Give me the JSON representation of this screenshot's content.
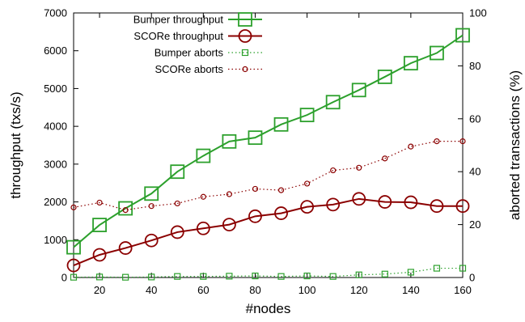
{
  "chart_data": {
    "type": "line",
    "title": "",
    "xlabel": "#nodes",
    "ylabel": "throughput (txs/s)",
    "y2label": "aborted transactions (%)",
    "xlim": [
      10,
      160
    ],
    "ylim": [
      0,
      7000
    ],
    "y2lim": [
      0,
      100
    ],
    "x_ticks": [
      20,
      40,
      60,
      80,
      100,
      120,
      140,
      160
    ],
    "y_ticks": [
      0,
      1000,
      2000,
      3000,
      4000,
      5000,
      6000,
      7000
    ],
    "y2_ticks": [
      0,
      20,
      40,
      60,
      80,
      100
    ],
    "legend_position": "top-left",
    "grid": false,
    "x": [
      10,
      20,
      30,
      40,
      50,
      60,
      70,
      80,
      90,
      100,
      110,
      120,
      130,
      140,
      150,
      160
    ],
    "series": [
      {
        "name": "Bumper throughput",
        "axis": "left",
        "marker": "square",
        "line": "solid",
        "color": "#2ca02c",
        "values": [
          800,
          1390,
          1830,
          2220,
          2800,
          3220,
          3600,
          3700,
          4050,
          4300,
          4640,
          4960,
          5310,
          5670,
          5940,
          6410
        ]
      },
      {
        "name": "SCORe throughput",
        "axis": "left",
        "marker": "circle",
        "line": "solid",
        "color": "#8b0000",
        "values": [
          320,
          600,
          780,
          980,
          1200,
          1300,
          1400,
          1620,
          1700,
          1870,
          1930,
          2080,
          2000,
          1990,
          1890,
          1890
        ]
      },
      {
        "name": "Bumper aborts",
        "axis": "right",
        "marker": "square",
        "line": "dotted",
        "color": "#2ca02c",
        "values": [
          0.1,
          0.2,
          0.1,
          0.2,
          0.4,
          0.4,
          0.5,
          0.6,
          0.4,
          0.6,
          0.4,
          1.0,
          1.3,
          2.0,
          3.5,
          3.5
        ]
      },
      {
        "name": "SCORe aborts",
        "axis": "right",
        "marker": "circle",
        "line": "dotted",
        "color": "#8b0000",
        "values": [
          26.5,
          28.3,
          25.5,
          27.0,
          28.0,
          30.5,
          31.5,
          33.5,
          33.0,
          35.5,
          40.5,
          41.5,
          45.0,
          49.5,
          51.5,
          51.5
        ]
      }
    ]
  }
}
